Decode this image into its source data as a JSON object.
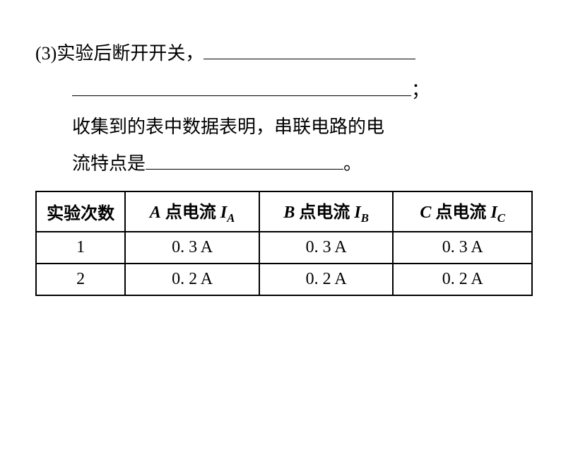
{
  "question": {
    "label": "(3)",
    "line1_prefix": "实验后断开开关，",
    "line2_suffix": "；",
    "line3": "收集到的表中数据表明，串联电路的电",
    "line4_prefix": "流特点是",
    "line4_suffix": "。"
  },
  "table": {
    "headers": {
      "col1": "实验次数",
      "col2_point": "A",
      "col2_text": " 点电流 ",
      "col2_symbol": "I",
      "col2_sub": "A",
      "col3_point": "B",
      "col3_text": " 点电流 ",
      "col3_symbol": "I",
      "col3_sub": "B",
      "col4_point": "C",
      "col4_text": " 点电流 ",
      "col4_symbol": "I",
      "col4_sub": "C"
    },
    "rows": [
      {
        "num": "1",
        "a": "0. 3 A",
        "b": "0. 3 A",
        "c": "0. 3 A"
      },
      {
        "num": "2",
        "a": "0. 2 A",
        "b": "0. 2 A",
        "c": "0. 2 A"
      }
    ],
    "column_widths": [
      "18%",
      "27%",
      "27%",
      "28%"
    ],
    "border_color": "#000000",
    "background_color": "#ffffff",
    "header_fontsize": 24,
    "cell_fontsize": 24
  }
}
